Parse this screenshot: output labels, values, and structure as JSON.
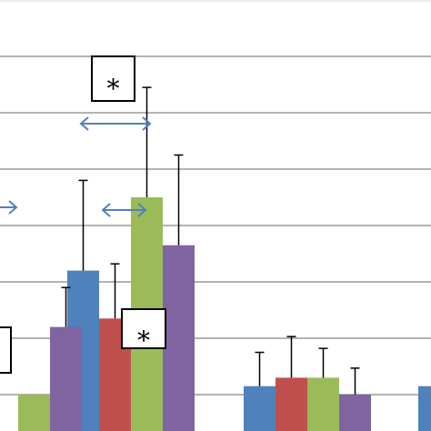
{
  "chart_data": {
    "type": "bar",
    "title": "",
    "xlabel": "",
    "ylabel": "",
    "grid": true,
    "ylim": [
      0,
      7.6
    ],
    "gridlines": [
      1,
      2,
      3,
      4,
      5,
      6,
      7
    ],
    "categories": [
      "",
      "",
      "",
      ""
    ],
    "series": [
      {
        "color": "#4f81bd",
        "values": [
          null,
          3.2,
          1.15,
          1.15
        ],
        "errors": [
          null,
          1.6,
          0.6,
          null
        ]
      },
      {
        "color": "#c0504d",
        "values": [
          null,
          2.35,
          1.3,
          null
        ],
        "errors": [
          null,
          0.97,
          0.73,
          null
        ]
      },
      {
        "color": "#9bbb59",
        "values": [
          1.0,
          4.5,
          1.3,
          null
        ],
        "errors": [
          null,
          1.95,
          0.52,
          null
        ]
      },
      {
        "color": "#8064a2",
        "values": [
          2.2,
          3.65,
          1.0,
          null
        ],
        "errors": [
          0.7,
          1.6,
          0.47,
          null
        ]
      }
    ],
    "annotations": [
      {
        "text": "*",
        "kind": "significance-box"
      },
      {
        "text": "*",
        "kind": "significance-box"
      },
      {
        "text": "",
        "kind": "significance-box"
      }
    ],
    "comparison_arrows": 3
  }
}
